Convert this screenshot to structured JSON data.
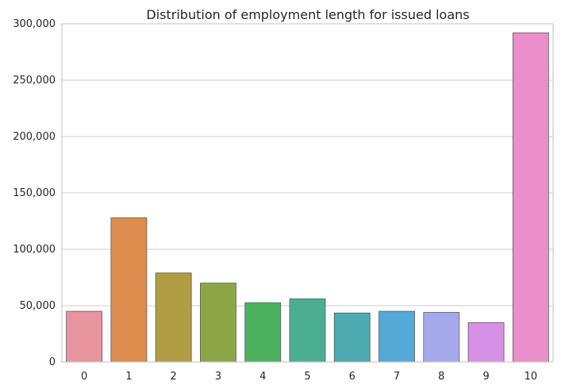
{
  "chart_data": {
    "type": "bar",
    "title": "Distribution of employment length for issued loans",
    "xlabel": "",
    "ylabel": "",
    "categories": [
      "0",
      "1",
      "2",
      "3",
      "4",
      "5",
      "6",
      "7",
      "8",
      "9",
      "10"
    ],
    "values": [
      45000,
      128000,
      79000,
      70000,
      52500,
      56000,
      43500,
      45000,
      44000,
      35000,
      292000
    ],
    "ylim": [
      0,
      300000
    ],
    "yticks": [
      0,
      50000,
      100000,
      150000,
      200000,
      250000,
      300000
    ],
    "ytick_labels": [
      "0",
      "50,000",
      "100,000",
      "150,000",
      "200,000",
      "250,000",
      "300,000"
    ],
    "grid": true,
    "colors": [
      "#e8949f",
      "#dd8e4e",
      "#b29d47",
      "#8da645",
      "#4cb260",
      "#4cae91",
      "#4cabb0",
      "#54a9d6",
      "#a5a9eb",
      "#d591e6",
      "#e88ec9"
    ]
  }
}
